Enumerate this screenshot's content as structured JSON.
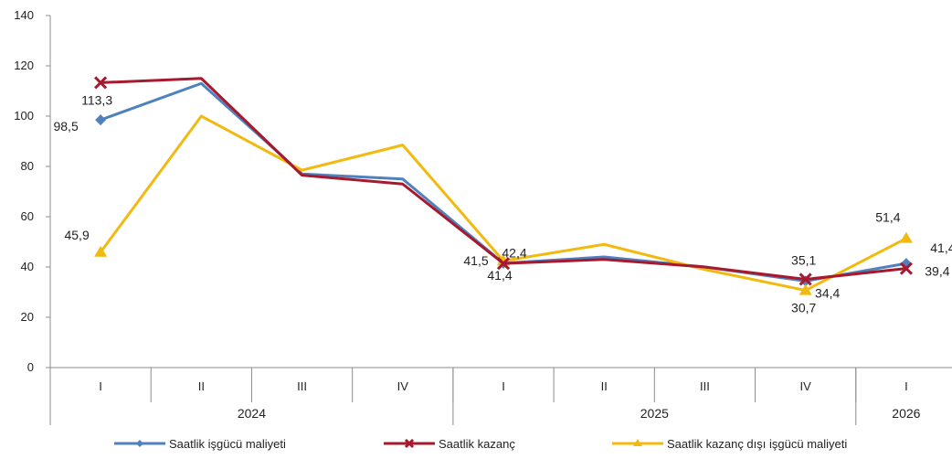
{
  "chart_data": {
    "type": "line",
    "categories": [
      "I",
      "II",
      "III",
      "IV",
      "I",
      "II",
      "III",
      "IV",
      "I"
    ],
    "groups": [
      {
        "label": "2024",
        "span": 4
      },
      {
        "label": "2025",
        "span": 4
      },
      {
        "label": "2026",
        "span": 1
      }
    ],
    "ylim": [
      0,
      140
    ],
    "yticks": [
      "0",
      "20",
      "40",
      "60",
      "80",
      "100",
      "120",
      "140"
    ],
    "grid": false,
    "legend_position": "bottom",
    "series": [
      {
        "name": "Saatlik işgücü maliyeti",
        "color": "#4F81BD",
        "marker": "diamond",
        "values": [
          98.5,
          113,
          77,
          75,
          41.5,
          44,
          40,
          34.4,
          41.4
        ]
      },
      {
        "name": "Saatlik kazanç",
        "color": "#A6192E",
        "marker": "x",
        "values": [
          113.3,
          115,
          76.5,
          73,
          41.4,
          43,
          40,
          35.1,
          39.4
        ]
      },
      {
        "name": "Saatlik kazanç dışı işgücü maliyeti",
        "color": "#F2B90F",
        "marker": "triangle",
        "values": [
          45.9,
          100,
          78.5,
          88.5,
          42.4,
          49,
          39,
          30.7,
          51.4
        ]
      }
    ],
    "data_labels": [
      {
        "text": "113,3",
        "series": 1,
        "index": 0
      },
      {
        "text": "98,5",
        "series": 0,
        "index": 0
      },
      {
        "text": "45,9",
        "series": 2,
        "index": 0
      },
      {
        "text": "42,4",
        "series": 2,
        "index": 4
      },
      {
        "text": "41,5",
        "series": 0,
        "index": 4
      },
      {
        "text": "41,4",
        "series": 1,
        "index": 4
      },
      {
        "text": "35,1",
        "series": 1,
        "index": 7
      },
      {
        "text": "34,4",
        "series": 0,
        "index": 7
      },
      {
        "text": "30,7",
        "series": 2,
        "index": 7
      },
      {
        "text": "51,4",
        "series": 2,
        "index": 8
      },
      {
        "text": "41,4",
        "series": 0,
        "index": 8
      },
      {
        "text": "39,4",
        "series": 1,
        "index": 8
      }
    ]
  }
}
